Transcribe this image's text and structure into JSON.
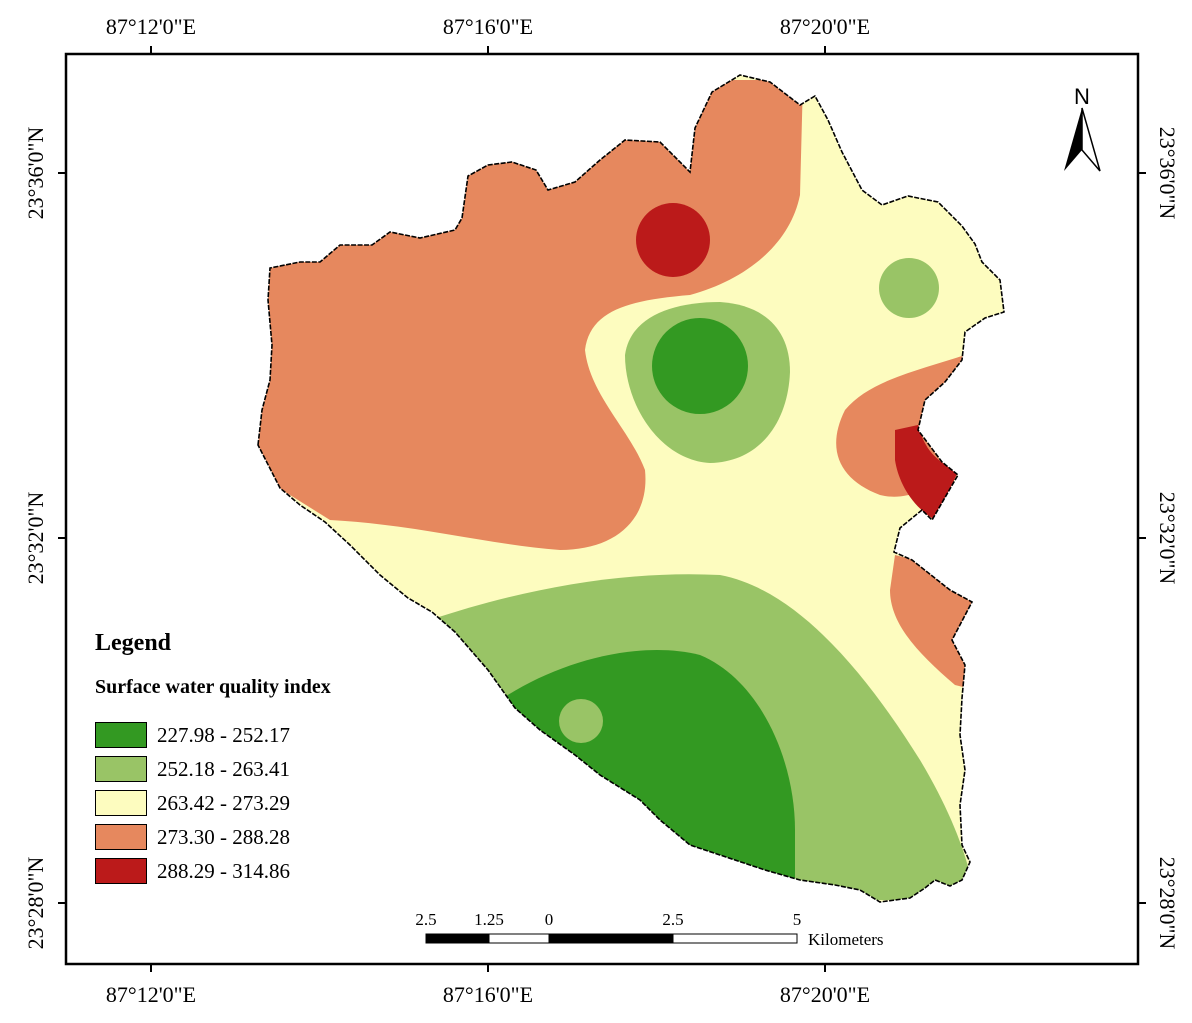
{
  "map": {
    "top_longitudes": [
      "87°12'0\"E",
      "87°16'0\"E",
      "87°20'0\"E"
    ],
    "bottom_longitudes": [
      "87°12'0\"E",
      "87°16'0\"E",
      "87°20'0\"E"
    ],
    "left_latitudes": [
      "23°36'0\"N",
      "23°32'0\"N",
      "23°28'0\"N"
    ],
    "right_latitudes": [
      "23°36'0\"N",
      "23°32'0\"N",
      "23°28'0\"N"
    ]
  },
  "legend": {
    "title": "Legend",
    "subtitle": "Surface water quality index",
    "classes": [
      {
        "label": "227.98 - 252.17",
        "color": "#339922"
      },
      {
        "label": "252.18 - 263.41",
        "color": "#99c466"
      },
      {
        "label": "263.42 - 273.29",
        "color": "#fdfcbf"
      },
      {
        "label": "273.30 - 288.28",
        "color": "#e6885e"
      },
      {
        "label": "288.29 - 314.86",
        "color": "#bb1a1a"
      }
    ]
  },
  "north_arrow": {
    "letter": "N",
    "icon": "north-arrow-icon"
  },
  "scale_bar": {
    "ticks": [
      "2.5",
      "1.25",
      "0",
      "2.5",
      "5"
    ],
    "unit": "Kilometers"
  }
}
